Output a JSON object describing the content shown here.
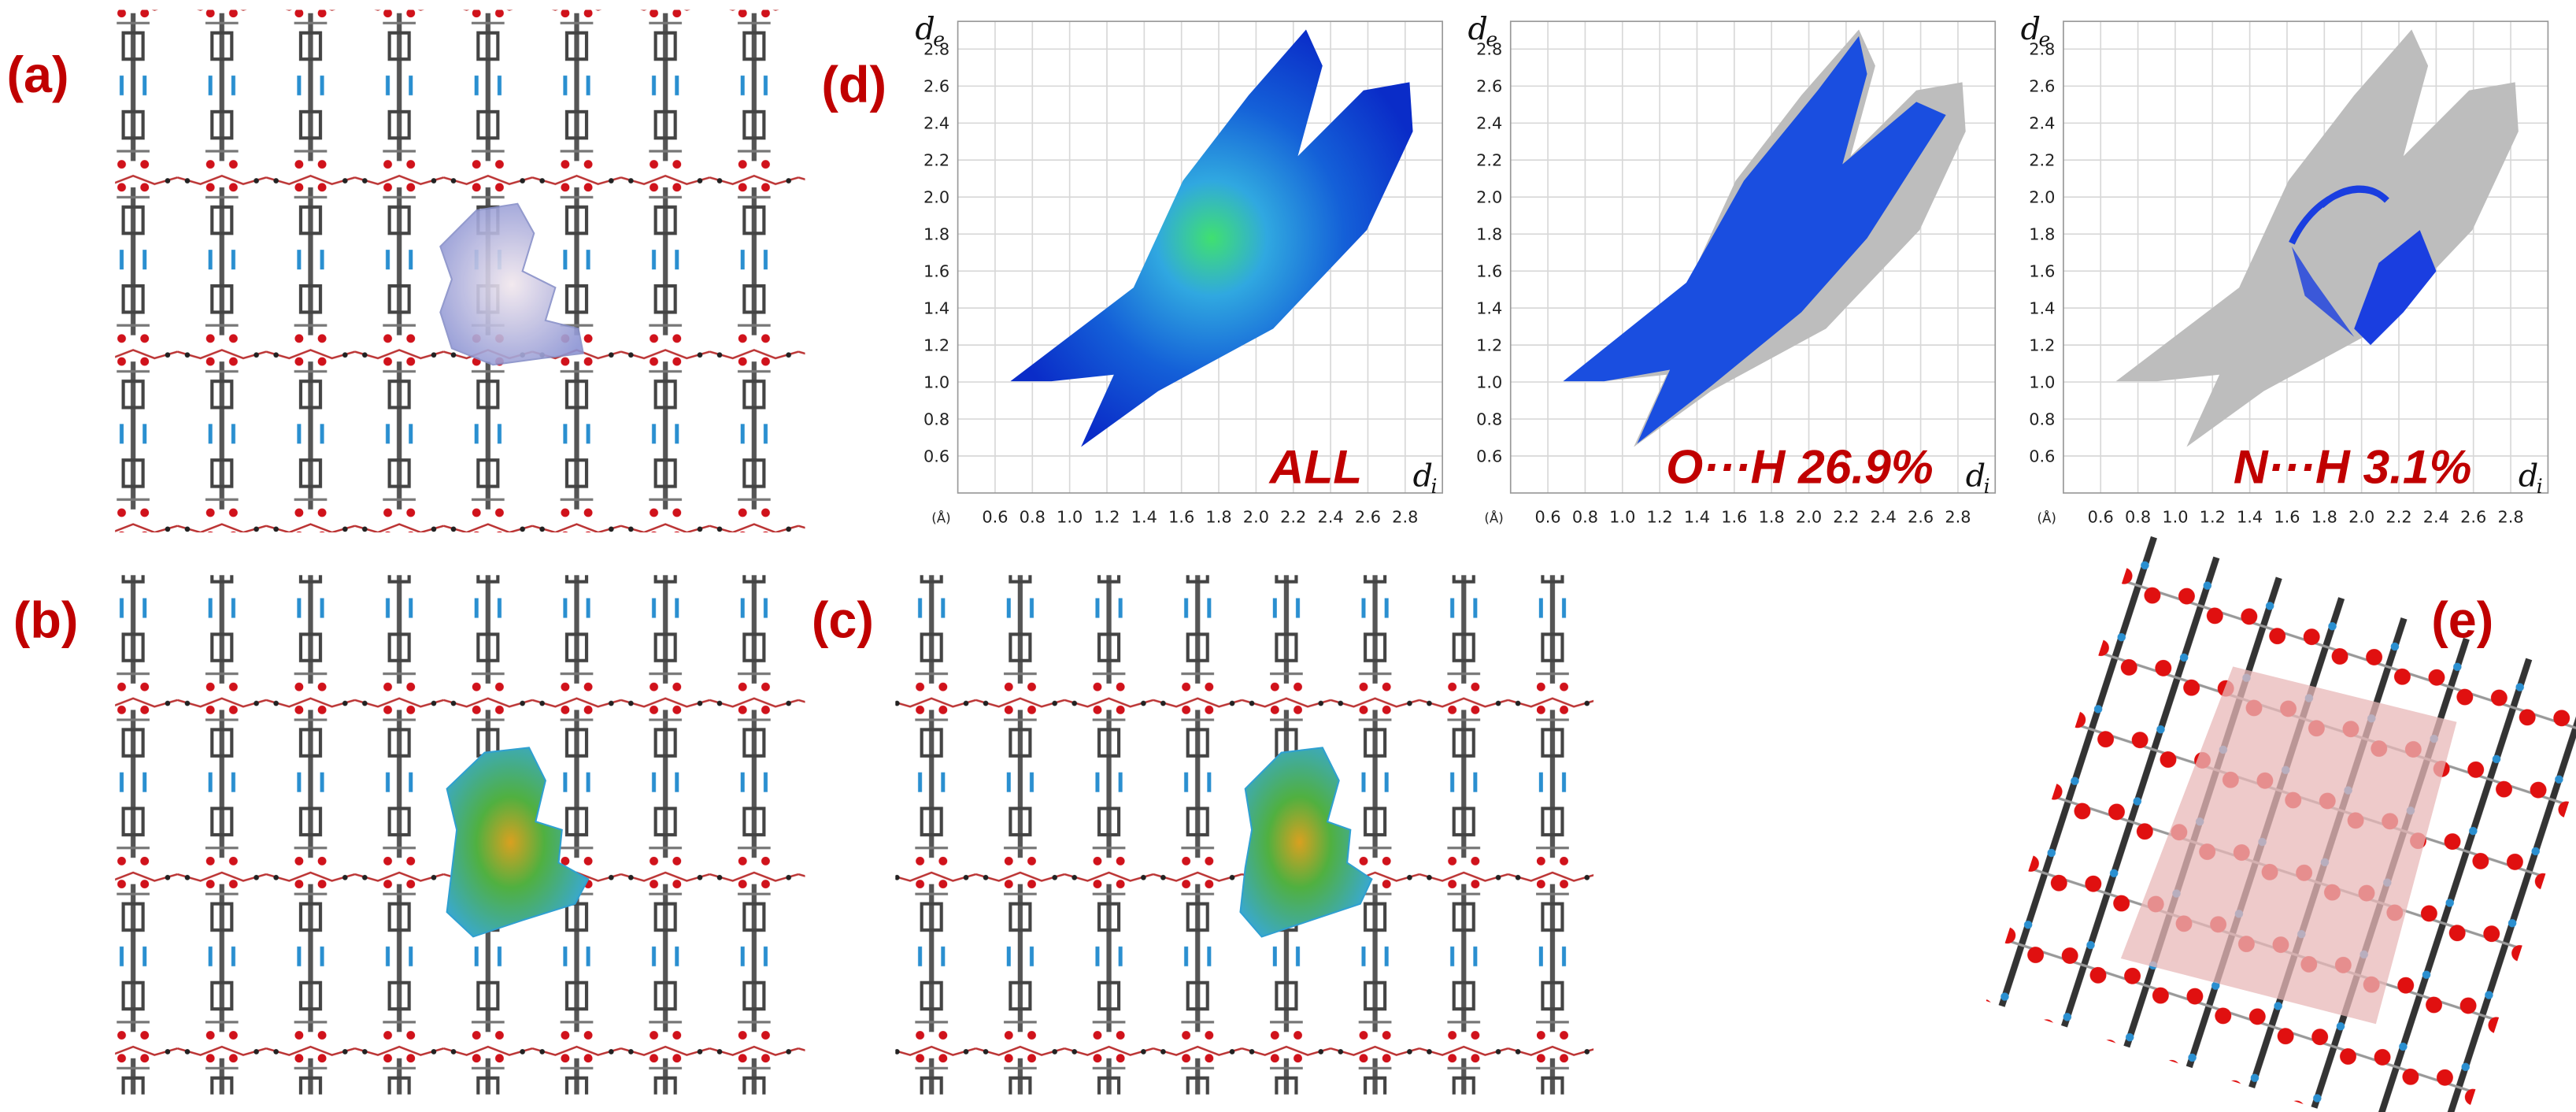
{
  "panels": {
    "a": "(a)",
    "b": "(b)",
    "c": "(c)",
    "d": "(d)",
    "e": "(e)"
  },
  "fingerprint_plots": {
    "unit_label": "(Å)",
    "x_axis_label": {
      "main": "d",
      "sub": "i"
    },
    "y_axis_label": {
      "main": "d",
      "sub": "e"
    },
    "xlim": [
      0.4,
      3.0
    ],
    "ylim": [
      0.4,
      2.95
    ],
    "xticks": [
      0.6,
      0.8,
      {
        "value": 1.0,
        "label": "1.0"
      },
      1.2,
      1.4,
      1.6,
      1.8,
      {
        "value": 2.0,
        "label": "2.0"
      },
      2.2,
      2.4,
      2.6,
      2.8
    ],
    "yticks": [
      0.6,
      0.8,
      {
        "value": 1.0,
        "label": "1.0"
      },
      1.2,
      1.4,
      1.6,
      1.8,
      {
        "value": 2.0,
        "label": "2.0"
      },
      2.2,
      2.4,
      2.6,
      2.8
    ],
    "plots": [
      {
        "label": "ALL"
      },
      {
        "label": "O···H 26.9%"
      },
      {
        "label": "N···H 3.1%"
      }
    ]
  }
}
